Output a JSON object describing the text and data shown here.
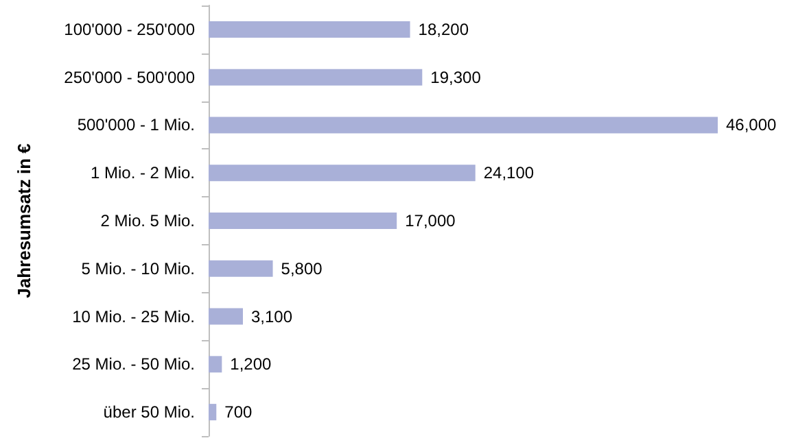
{
  "chart_data": {
    "type": "bar",
    "orientation": "horizontal",
    "ylabel": "Jahresumsatz in €",
    "categories": [
      "100'000 - 250'000",
      "250'000 - 500'000",
      "500'000 - 1 Mio.",
      "1 Mio. - 2 Mio.",
      "2 Mio. 5 Mio.",
      "5 Mio. - 10 Mio.",
      "10 Mio. - 25 Mio.",
      "25 Mio. - 50 Mio.",
      "über 50 Mio."
    ],
    "values": [
      18200,
      19300,
      46000,
      24100,
      17000,
      5800,
      3100,
      1200,
      700
    ],
    "value_labels": [
      "18,200",
      "19,300",
      "46,000",
      "24,100",
      "17,000",
      "5,800",
      "3,100",
      "1,200",
      "700"
    ],
    "color": "#a9b0d8"
  }
}
